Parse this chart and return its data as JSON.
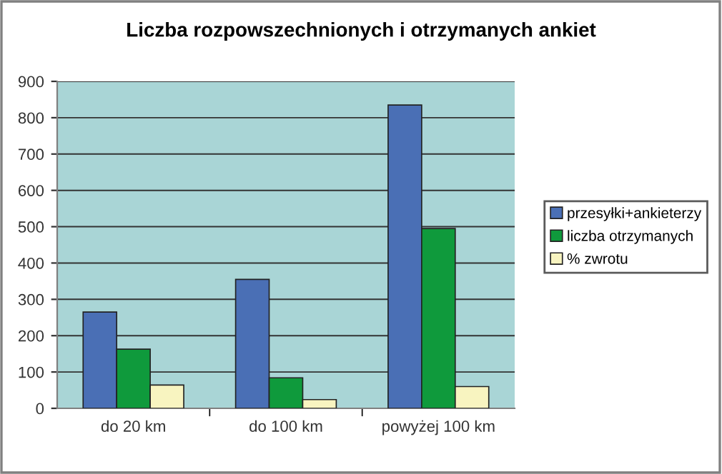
{
  "chart_data": {
    "type": "bar",
    "title": "Liczba rozpowszechnionych i otrzymanych ankiet",
    "categories": [
      "do 20 km",
      "do 100 km",
      "powyżej 100 km"
    ],
    "series": [
      {
        "name": "przesyłki+ankieterzy",
        "color": "#4a6fb5",
        "values": [
          265,
          355,
          835
        ]
      },
      {
        "name": "liczba otrzymanych",
        "color": "#0f9a3c",
        "values": [
          163,
          84,
          495
        ]
      },
      {
        "name": "% zwrotu",
        "color": "#f8f4c0",
        "values": [
          64,
          24,
          60
        ]
      }
    ],
    "ylim": [
      0,
      900
    ],
    "yticks": [
      0,
      100,
      200,
      300,
      400,
      500,
      600,
      700,
      800,
      900
    ],
    "grid": "y",
    "legend": "right"
  }
}
